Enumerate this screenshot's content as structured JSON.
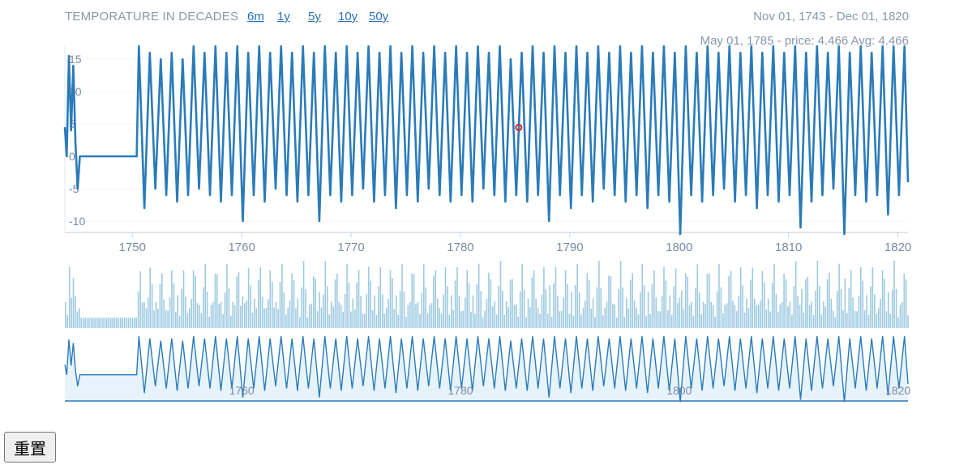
{
  "header": {
    "title": "TEMPORATURE IN DECADES",
    "range_buttons": [
      "6m",
      "1y",
      "5y",
      "10y",
      "50y"
    ],
    "date_range": "Nov 01, 1743 - Dec 01, 1820",
    "tooltip": "May 01, 1785 - price: 4.466 Avg: 4.466"
  },
  "reset_label": "重置",
  "colors": {
    "line": "#2b7bb9",
    "bars": "#9ecae1",
    "area_fill": "#e6f3fb",
    "marker": "#d62728",
    "axis_text": "#7a8aa6"
  },
  "chart_data": [
    {
      "type": "line",
      "title": "TEMPORATURE IN DECADES",
      "xlabel": "",
      "ylabel": "",
      "xlim": [
        1743.83,
        1820.92
      ],
      "ylim": [
        -11.5,
        17
      ],
      "x_ticks": [
        "1750",
        "1760",
        "1770",
        "1780",
        "1790",
        "1800",
        "1810",
        "1820"
      ],
      "y_ticks": [
        "-10",
        "-5",
        "0",
        "5",
        "10",
        "15"
      ],
      "grid": true,
      "highlight": {
        "x": 1785.33,
        "y": 4.466,
        "label": "May 01, 1785 - price: 4.466 Avg: 4.466"
      },
      "series": [
        {
          "x": [
            1743.83,
            1744.0,
            1744.2,
            1744.4,
            1744.6,
            1744.8,
            1745.0,
            1745.2,
            1745.5,
            1746.0,
            1750.0,
            1750.4,
            1750.6,
            1751.1,
            1751.6,
            1752.1,
            1752.6,
            1753.1,
            1753.6,
            1754.1,
            1754.6,
            1755.1,
            1755.6,
            1756.1,
            1756.6,
            1757.1,
            1757.6,
            1758.1,
            1758.6,
            1759.1,
            1759.6,
            1760.1,
            1760.6,
            1761.1,
            1761.6,
            1762.1,
            1762.6,
            1763.1,
            1763.6,
            1764.1,
            1764.6,
            1765.1,
            1765.6,
            1766.1,
            1766.6,
            1767.1,
            1767.6,
            1768.1,
            1768.6,
            1769.1,
            1769.6,
            1770.1,
            1770.6,
            1771.1,
            1771.6,
            1772.1,
            1772.6,
            1773.1,
            1773.6,
            1774.1,
            1774.6,
            1775.1,
            1775.6,
            1776.1,
            1776.6,
            1777.1,
            1777.6,
            1778.1,
            1778.6,
            1779.1,
            1779.6,
            1780.1,
            1780.6,
            1781.1,
            1781.6,
            1782.1,
            1782.6,
            1783.1,
            1783.6,
            1784.1,
            1784.6,
            1785.1,
            1785.6,
            1786.1,
            1786.6,
            1787.1,
            1787.6,
            1788.1,
            1788.6,
            1789.1,
            1789.6,
            1790.1,
            1790.6,
            1791.1,
            1791.6,
            1792.1,
            1792.6,
            1793.1,
            1793.6,
            1794.1,
            1794.6,
            1795.1,
            1795.6,
            1796.1,
            1796.6,
            1797.1,
            1797.6,
            1798.1,
            1798.6,
            1799.1,
            1799.6,
            1800.1,
            1800.6,
            1801.1,
            1801.6,
            1802.1,
            1802.6,
            1803.1,
            1803.6,
            1804.1,
            1804.6,
            1805.1,
            1805.6,
            1806.1,
            1806.6,
            1807.1,
            1807.6,
            1808.1,
            1808.6,
            1809.1,
            1809.6,
            1810.1,
            1810.6,
            1811.1,
            1811.6,
            1812.1,
            1812.6,
            1813.1,
            1813.6,
            1814.1,
            1814.6,
            1815.1,
            1815.6,
            1816.1,
            1816.6,
            1817.1,
            1817.6,
            1818.1,
            1818.6,
            1819.1,
            1819.6,
            1820.1,
            1820.6,
            1820.92
          ],
          "values": [
            4.5,
            0,
            15.5,
            4,
            14,
            2,
            -5,
            0,
            0,
            0,
            0,
            0,
            17,
            -8,
            16,
            -5,
            15,
            -6,
            16,
            -7,
            15,
            -6,
            17,
            -5,
            16,
            -6,
            17,
            -7,
            16,
            -6,
            17,
            -10,
            16,
            -6,
            17,
            -7,
            16,
            -5,
            17,
            -6,
            16,
            -7,
            17,
            -6,
            16,
            -10,
            17,
            -6,
            16,
            -7,
            17,
            -6,
            16,
            -5,
            17,
            -7,
            16,
            -6,
            17,
            -8,
            16,
            -6,
            17,
            -7,
            16,
            -5,
            17,
            -6,
            16,
            -7,
            17,
            -6,
            16,
            -7,
            17,
            -5,
            16,
            -6,
            17,
            -7,
            15,
            -6,
            16,
            -7,
            17,
            -6,
            16,
            -10,
            17,
            -6,
            16,
            -8,
            17,
            -6,
            16,
            -7,
            17,
            -5,
            16,
            -6,
            17,
            -7,
            16,
            -6,
            17,
            -8,
            16,
            -6,
            17,
            -7,
            16,
            -12,
            17,
            -6,
            16,
            -7,
            17,
            -6,
            16,
            -5,
            17,
            -7,
            16,
            -6,
            17,
            -8,
            16,
            -6,
            17,
            -7,
            16,
            -6,
            17,
            -11,
            16,
            -7,
            17,
            -6,
            16,
            -5,
            17,
            -12,
            16,
            -6,
            17,
            -7,
            16,
            -6,
            17,
            -9,
            17,
            -6,
            17,
            -4
          ]
        }
      ]
    }
  ]
}
